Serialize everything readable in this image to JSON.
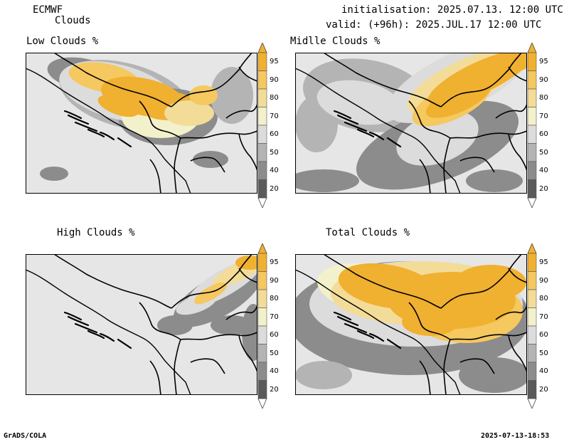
{
  "header": {
    "model": "ECMWF",
    "product": "Clouds",
    "init_line": "initialisation: 2025.07.13. 12:00 UTC",
    "valid_line": "valid: (+96h): 2025.JUL.17 12:00 UTC"
  },
  "panels": [
    {
      "id": "low",
      "title": "Low Clouds %"
    },
    {
      "id": "middle",
      "title": "Midlle Clouds %"
    },
    {
      "id": "high",
      "title": "High Clouds %"
    },
    {
      "id": "total",
      "title": "Total Clouds %"
    }
  ],
  "colorbar": {
    "labels": [
      "95",
      "90",
      "80",
      "70",
      "60",
      "50",
      "40",
      "20"
    ],
    "colors": {
      "c95": "#f0b030",
      "c90": "#f5c860",
      "c80": "#f3dc98",
      "c70": "#f3f1cb",
      "c60": "#dcdcdc",
      "c50": "#b4b4b4",
      "c40": "#8c8c8c",
      "c20": "#5a5a5a",
      "land": "#e6e6e6"
    }
  },
  "footer": {
    "left": "GrADS/COLA",
    "right": "2025-07-13-18:53"
  }
}
